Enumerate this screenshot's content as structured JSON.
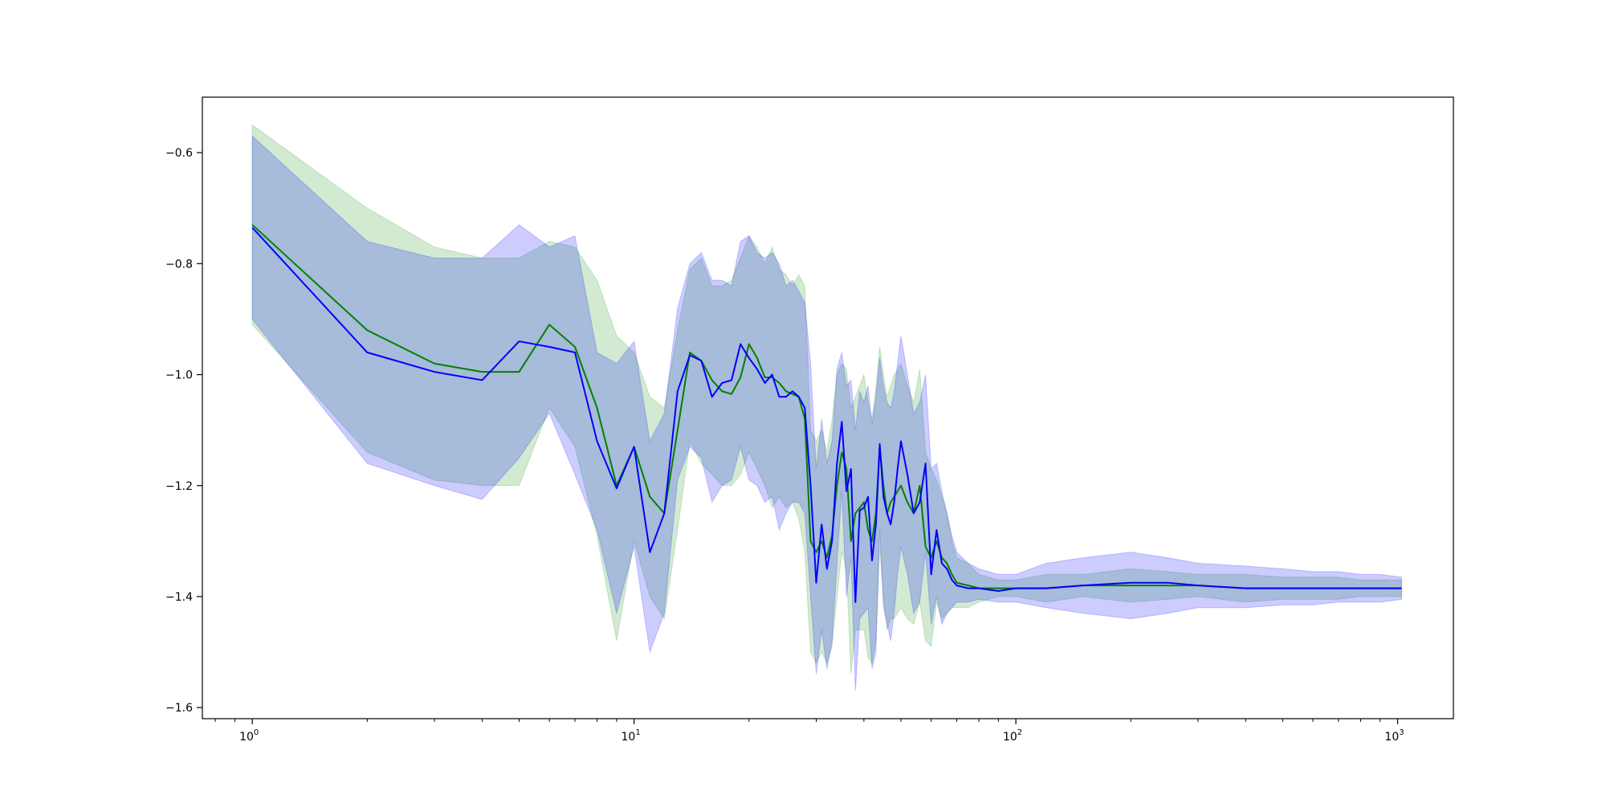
{
  "chart_data": {
    "type": "line",
    "title": "",
    "xlabel": "",
    "ylabel": "",
    "xscale": "log",
    "xlim": [
      0.74,
      1400
    ],
    "ylim": [
      -1.62,
      -0.5
    ],
    "grid": false,
    "legend": "none",
    "x_ticks": [
      {
        "value": 1,
        "base": "10",
        "exp": "0"
      },
      {
        "value": 10,
        "base": "10",
        "exp": "1"
      },
      {
        "value": 100,
        "base": "10",
        "exp": "2"
      },
      {
        "value": 1000,
        "base": "10",
        "exp": "3"
      }
    ],
    "y_ticks": [
      {
        "value": -1.6,
        "label": "−1.6"
      },
      {
        "value": -1.4,
        "label": "−1.4"
      },
      {
        "value": -1.2,
        "label": "−1.2"
      },
      {
        "value": -1.0,
        "label": "−1.0"
      },
      {
        "value": -0.8,
        "label": "−0.8"
      },
      {
        "value": -0.6,
        "label": "−0.6"
      }
    ],
    "series": [
      {
        "color": "#008000",
        "band_color": "#2ca02c",
        "band_opacity": 0.22,
        "x": [
          1,
          2,
          3,
          4,
          5,
          6,
          7,
          8,
          9,
          10,
          11,
          12,
          13,
          14,
          15,
          16,
          17,
          18,
          19,
          20,
          21,
          22,
          23,
          24,
          25,
          26,
          27,
          28,
          29,
          30,
          31,
          32,
          33,
          34,
          35,
          36,
          37,
          38,
          39,
          40,
          41,
          42,
          43,
          44,
          45,
          46,
          47,
          48,
          49,
          50,
          52,
          54,
          56,
          58,
          60,
          62,
          64,
          66,
          68,
          70,
          75,
          80,
          90,
          100,
          120,
          150,
          200,
          250,
          300,
          400,
          500,
          600,
          700,
          800,
          900,
          1024
        ],
        "y": [
          -0.73,
          -0.92,
          -0.98,
          -0.995,
          -0.995,
          -0.91,
          -0.95,
          -1.06,
          -1.2,
          -1.13,
          -1.22,
          -1.25,
          -1.1,
          -0.96,
          -0.975,
          -1.01,
          -1.03,
          -1.035,
          -1.005,
          -0.945,
          -0.97,
          -1.005,
          -1.005,
          -1.015,
          -1.03,
          -1.035,
          -1.04,
          -1.08,
          -1.3,
          -1.32,
          -1.3,
          -1.33,
          -1.29,
          -1.2,
          -1.14,
          -1.17,
          -1.3,
          -1.25,
          -1.24,
          -1.23,
          -1.28,
          -1.3,
          -1.25,
          -1.13,
          -1.2,
          -1.25,
          -1.23,
          -1.22,
          -1.21,
          -1.2,
          -1.23,
          -1.25,
          -1.2,
          -1.31,
          -1.33,
          -1.3,
          -1.33,
          -1.34,
          -1.36,
          -1.375,
          -1.38,
          -1.385,
          -1.385,
          -1.385,
          -1.385,
          -1.38,
          -1.38,
          -1.38,
          -1.38,
          -1.385,
          -1.385,
          -1.385,
          -1.385,
          -1.385,
          -1.385,
          -1.385
        ],
        "upper": [
          -0.55,
          -0.7,
          -0.77,
          -0.79,
          -0.79,
          -0.76,
          -0.77,
          -0.83,
          -0.93,
          -0.96,
          -1.04,
          -1.06,
          -0.92,
          -0.81,
          -0.79,
          -0.84,
          -0.84,
          -0.83,
          -0.79,
          -0.75,
          -0.77,
          -0.8,
          -0.77,
          -0.81,
          -0.82,
          -0.84,
          -0.82,
          -0.84,
          -1.1,
          -1.12,
          -1.1,
          -1.14,
          -1.08,
          -1.0,
          -0.98,
          -0.99,
          -1.06,
          -1.04,
          -1.02,
          -1.0,
          -1.05,
          -1.08,
          -1.02,
          -0.95,
          -1.0,
          -1.04,
          -1.02,
          -1.0,
          -0.99,
          -0.98,
          -1.02,
          -1.05,
          -0.99,
          -1.14,
          -1.17,
          -1.19,
          -1.22,
          -1.25,
          -1.3,
          -1.33,
          -1.34,
          -1.36,
          -1.37,
          -1.37,
          -1.36,
          -1.36,
          -1.35,
          -1.355,
          -1.36,
          -1.36,
          -1.365,
          -1.365,
          -1.365,
          -1.37,
          -1.37,
          -1.37
        ],
        "lower": [
          -0.91,
          -1.14,
          -1.19,
          -1.2,
          -1.2,
          -1.06,
          -1.13,
          -1.29,
          -1.48,
          -1.3,
          -1.4,
          -1.44,
          -1.28,
          -1.12,
          -1.16,
          -1.18,
          -1.2,
          -1.2,
          -1.18,
          -1.14,
          -1.17,
          -1.2,
          -1.24,
          -1.22,
          -1.24,
          -1.23,
          -1.26,
          -1.32,
          -1.5,
          -1.52,
          -1.5,
          -1.52,
          -1.49,
          -1.4,
          -1.32,
          -1.35,
          -1.54,
          -1.46,
          -1.46,
          -1.46,
          -1.51,
          -1.52,
          -1.48,
          -1.31,
          -1.4,
          -1.46,
          -1.44,
          -1.44,
          -1.43,
          -1.42,
          -1.44,
          -1.45,
          -1.41,
          -1.48,
          -1.49,
          -1.41,
          -1.44,
          -1.43,
          -1.42,
          -1.42,
          -1.42,
          -1.41,
          -1.4,
          -1.4,
          -1.41,
          -1.4,
          -1.41,
          -1.405,
          -1.4,
          -1.41,
          -1.405,
          -1.405,
          -1.405,
          -1.4,
          -1.4,
          -1.4
        ]
      },
      {
        "color": "#0000ff",
        "band_color": "#0000ff",
        "band_opacity": 0.2,
        "x": [
          1,
          2,
          3,
          4,
          5,
          6,
          7,
          8,
          9,
          10,
          11,
          12,
          13,
          14,
          15,
          16,
          17,
          18,
          19,
          20,
          21,
          22,
          23,
          24,
          25,
          26,
          27,
          28,
          29,
          30,
          31,
          32,
          33,
          34,
          35,
          36,
          37,
          38,
          39,
          40,
          41,
          42,
          43,
          44,
          45,
          46,
          47,
          48,
          49,
          50,
          52,
          54,
          56,
          58,
          60,
          62,
          64,
          66,
          68,
          70,
          75,
          80,
          90,
          100,
          120,
          150,
          200,
          250,
          300,
          400,
          500,
          600,
          700,
          800,
          900,
          1024
        ],
        "y": [
          -0.735,
          -0.96,
          -0.995,
          -1.01,
          -0.94,
          -0.95,
          -0.96,
          -1.12,
          -1.205,
          -1.13,
          -1.32,
          -1.25,
          -1.03,
          -0.965,
          -0.975,
          -1.04,
          -1.015,
          -1.01,
          -0.945,
          -0.97,
          -0.99,
          -1.015,
          -1.0,
          -1.04,
          -1.04,
          -1.03,
          -1.04,
          -1.06,
          -1.2,
          -1.375,
          -1.27,
          -1.35,
          -1.3,
          -1.16,
          -1.085,
          -1.21,
          -1.17,
          -1.41,
          -1.245,
          -1.24,
          -1.22,
          -1.335,
          -1.27,
          -1.125,
          -1.22,
          -1.25,
          -1.27,
          -1.23,
          -1.17,
          -1.12,
          -1.18,
          -1.25,
          -1.23,
          -1.16,
          -1.36,
          -1.28,
          -1.34,
          -1.35,
          -1.37,
          -1.38,
          -1.385,
          -1.385,
          -1.39,
          -1.385,
          -1.385,
          -1.38,
          -1.375,
          -1.375,
          -1.38,
          -1.385,
          -1.385,
          -1.385,
          -1.385,
          -1.385,
          -1.385,
          -1.385
        ],
        "upper": [
          -0.57,
          -0.76,
          -0.79,
          -0.79,
          -0.73,
          -0.77,
          -0.75,
          -0.96,
          -0.98,
          -0.94,
          -1.12,
          -1.07,
          -0.88,
          -0.8,
          -0.78,
          -0.83,
          -0.83,
          -0.84,
          -0.76,
          -0.75,
          -0.78,
          -0.79,
          -0.78,
          -0.8,
          -0.84,
          -0.83,
          -0.85,
          -0.87,
          -0.98,
          -1.17,
          -1.08,
          -1.16,
          -1.12,
          -0.99,
          -0.96,
          -1.02,
          -1.01,
          -1.1,
          -1.03,
          -1.05,
          -1.02,
          -1.09,
          -1.04,
          -0.97,
          -1.02,
          -1.05,
          -1.06,
          -1.03,
          -0.98,
          -0.93,
          -1.0,
          -1.07,
          -1.05,
          -1.0,
          -1.17,
          -1.16,
          -1.21,
          -1.25,
          -1.29,
          -1.32,
          -1.34,
          -1.35,
          -1.36,
          -1.36,
          -1.34,
          -1.33,
          -1.32,
          -1.33,
          -1.34,
          -1.345,
          -1.35,
          -1.355,
          -1.355,
          -1.36,
          -1.36,
          -1.365
        ],
        "lower": [
          -0.9,
          -1.16,
          -1.2,
          -1.225,
          -1.15,
          -1.07,
          -1.18,
          -1.28,
          -1.43,
          -1.31,
          -1.5,
          -1.43,
          -1.19,
          -1.13,
          -1.15,
          -1.23,
          -1.2,
          -1.19,
          -1.13,
          -1.19,
          -1.2,
          -1.23,
          -1.22,
          -1.28,
          -1.25,
          -1.23,
          -1.23,
          -1.25,
          -1.4,
          -1.54,
          -1.46,
          -1.53,
          -1.48,
          -1.34,
          -1.21,
          -1.4,
          -1.33,
          -1.57,
          -1.44,
          -1.43,
          -1.42,
          -1.53,
          -1.5,
          -1.28,
          -1.42,
          -1.45,
          -1.48,
          -1.43,
          -1.36,
          -1.31,
          -1.36,
          -1.43,
          -1.41,
          -1.32,
          -1.45,
          -1.4,
          -1.45,
          -1.43,
          -1.42,
          -1.41,
          -1.41,
          -1.405,
          -1.41,
          -1.41,
          -1.42,
          -1.43,
          -1.44,
          -1.43,
          -1.42,
          -1.42,
          -1.415,
          -1.415,
          -1.41,
          -1.41,
          -1.41,
          -1.405
        ]
      }
    ]
  }
}
